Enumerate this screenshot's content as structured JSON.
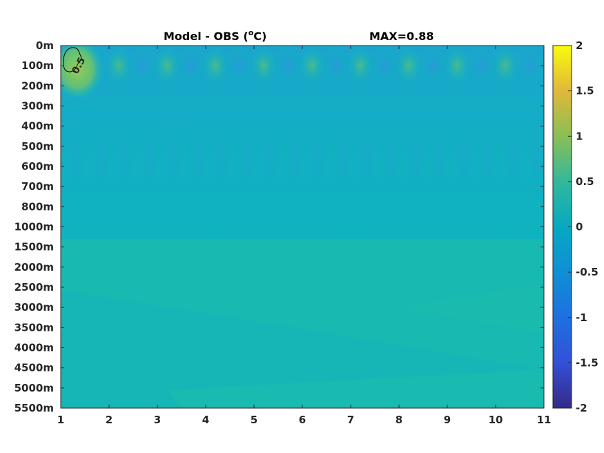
{
  "chart_data": {
    "type": "heatmap",
    "title": "Model - OBS (",
    "title_degree": "o",
    "title_unit": "C)",
    "max_label": "MAX=0.88",
    "x_ticks": [
      "1",
      "2",
      "3",
      "4",
      "5",
      "6",
      "7",
      "8",
      "9",
      "10",
      "11"
    ],
    "xlim": [
      1,
      11
    ],
    "y_ticks": [
      "0m",
      "100m",
      "200m",
      "300m",
      "400m",
      "500m",
      "600m",
      "700m",
      "800m",
      "1000m",
      "1500m",
      "2000m",
      "2500m",
      "3000m",
      "3500m",
      "4000m",
      "4500m",
      "5000m",
      "5500m"
    ],
    "colorbar": {
      "ticks": [
        "2",
        "1.5",
        "1",
        "0.5",
        "0",
        "-0.5",
        "-1",
        "-1.5",
        "-2"
      ],
      "range": [
        -2,
        2
      ],
      "colormap": "parula"
    },
    "contour_label": "0.5",
    "colors": {
      "background_field": "#16B7B7",
      "upper_band": "#10AFC0",
      "deep_band": "#18BAB0",
      "warm_spot": "#8CC85A",
      "cool_spot": "#2A9BDB"
    }
  }
}
